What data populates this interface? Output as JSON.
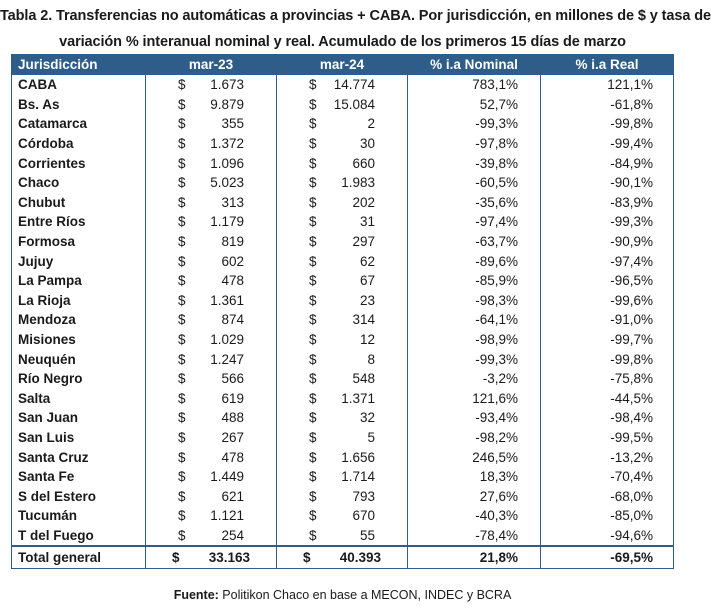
{
  "title": {
    "line1": "Tabla 2. Transferencias no automáticas a provincias + CABA. Por jurisdicción, en millones de $ y tasa de",
    "line2": "variación % interanual nominal y real. Acumulado de los primeros 15 días de marzo"
  },
  "table": {
    "headers": [
      "Jurisdicción",
      "mar-23",
      "mar-24",
      "% i.a Nominal",
      "% i.a Real"
    ],
    "currency": "$",
    "rows": [
      {
        "name": "CABA",
        "mar23": "1.673",
        "mar24": "14.774",
        "nominal": "783,1%",
        "real": "121,1%"
      },
      {
        "name": "Bs. As",
        "mar23": "9.879",
        "mar24": "15.084",
        "nominal": "52,7%",
        "real": "-61,8%"
      },
      {
        "name": "Catamarca",
        "mar23": "355",
        "mar24": "2",
        "nominal": "-99,3%",
        "real": "-99,8%"
      },
      {
        "name": "Córdoba",
        "mar23": "1.372",
        "mar24": "30",
        "nominal": "-97,8%",
        "real": "-99,4%"
      },
      {
        "name": "Corrientes",
        "mar23": "1.096",
        "mar24": "660",
        "nominal": "-39,8%",
        "real": "-84,9%"
      },
      {
        "name": "Chaco",
        "mar23": "5.023",
        "mar24": "1.983",
        "nominal": "-60,5%",
        "real": "-90,1%"
      },
      {
        "name": "Chubut",
        "mar23": "313",
        "mar24": "202",
        "nominal": "-35,6%",
        "real": "-83,9%"
      },
      {
        "name": "Entre Ríos",
        "mar23": "1.179",
        "mar24": "31",
        "nominal": "-97,4%",
        "real": "-99,3%"
      },
      {
        "name": "Formosa",
        "mar23": "819",
        "mar24": "297",
        "nominal": "-63,7%",
        "real": "-90,9%"
      },
      {
        "name": "Jujuy",
        "mar23": "602",
        "mar24": "62",
        "nominal": "-89,6%",
        "real": "-97,4%"
      },
      {
        "name": "La Pampa",
        "mar23": "478",
        "mar24": "67",
        "nominal": "-85,9%",
        "real": "-96,5%"
      },
      {
        "name": "La Rioja",
        "mar23": "1.361",
        "mar24": "23",
        "nominal": "-98,3%",
        "real": "-99,6%"
      },
      {
        "name": "Mendoza",
        "mar23": "874",
        "mar24": "314",
        "nominal": "-64,1%",
        "real": "-91,0%"
      },
      {
        "name": "Misiones",
        "mar23": "1.029",
        "mar24": "12",
        "nominal": "-98,9%",
        "real": "-99,7%"
      },
      {
        "name": "Neuquén",
        "mar23": "1.247",
        "mar24": "8",
        "nominal": "-99,3%",
        "real": "-99,8%"
      },
      {
        "name": "Río Negro",
        "mar23": "566",
        "mar24": "548",
        "nominal": "-3,2%",
        "real": "-75,8%"
      },
      {
        "name": "Salta",
        "mar23": "619",
        "mar24": "1.371",
        "nominal": "121,6%",
        "real": "-44,5%"
      },
      {
        "name": "San Juan",
        "mar23": "488",
        "mar24": "32",
        "nominal": "-93,4%",
        "real": "-98,4%"
      },
      {
        "name": "San Luis",
        "mar23": "267",
        "mar24": "5",
        "nominal": "-98,2%",
        "real": "-99,5%"
      },
      {
        "name": "Santa Cruz",
        "mar23": "478",
        "mar24": "1.656",
        "nominal": "246,5%",
        "real": "-13,2%"
      },
      {
        "name": "Santa Fe",
        "mar23": "1.449",
        "mar24": "1.714",
        "nominal": "18,3%",
        "real": "-70,4%"
      },
      {
        "name": "S del Estero",
        "mar23": "621",
        "mar24": "793",
        "nominal": "27,6%",
        "real": "-68,0%"
      },
      {
        "name": "Tucumán",
        "mar23": "1.121",
        "mar24": "670",
        "nominal": "-40,3%",
        "real": "-85,0%"
      },
      {
        "name": "T del Fuego",
        "mar23": "254",
        "mar24": "55",
        "nominal": "-78,4%",
        "real": "-94,6%"
      }
    ],
    "total": {
      "name": "Total general",
      "mar23": "33.163",
      "mar24": "40.393",
      "nominal": "21,8%",
      "real": "-69,5%"
    }
  },
  "source": {
    "label": "Fuente:",
    "text": " Politikon Chaco en base a MECON, INDEC y BCRA"
  },
  "colors": {
    "header_bg": "#2e5d8a",
    "header_text": "#ffffff"
  }
}
